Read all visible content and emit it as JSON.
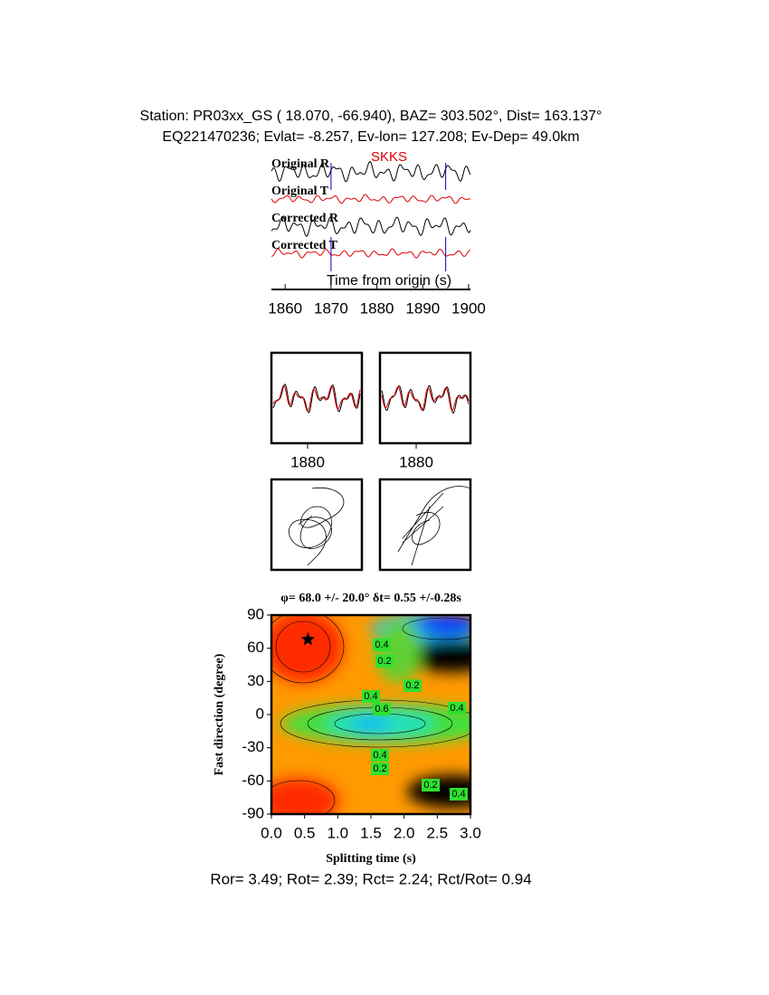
{
  "header": {
    "line1": "Station: PR03xx_GS (  18.070,  -66.940), BAZ=  303.502°, Dist=  163.137°",
    "line2": "EQ221470236; Evlat=  -8.257, Ev-lon= 127.208; Ev-Dep= 49.0km"
  },
  "chart_data": [
    {
      "type": "waveforms",
      "phase": "SKKS",
      "traces": [
        "Original R",
        "Original T",
        "Corrected R",
        "Corrected T"
      ],
      "xlabel": "Time from origin (s)",
      "xlim": [
        1857,
        1900.4
      ],
      "xticks": [
        1860,
        1870,
        1880,
        1890,
        1900
      ],
      "window": [
        1870,
        1895
      ]
    },
    {
      "type": "window",
      "xlim": [
        1870,
        1895
      ],
      "xticks": [
        1880
      ]
    },
    {
      "type": "window",
      "xlim": [
        1870,
        1895
      ],
      "xticks": [
        1880
      ]
    },
    {
      "type": "contour",
      "title": "φ= 68.0 +/- 20.0° δt= 0.55 +/-0.28s",
      "xlabel": "Splitting time (s)",
      "ylabel": "Fast direction (degree)",
      "xlim": [
        0,
        3
      ],
      "ylim": [
        -90,
        90
      ],
      "xticks": [
        {
          "value": 0,
          "label": "0.0"
        },
        {
          "value": 0.5,
          "label": "0.5"
        },
        {
          "value": 1,
          "label": "1.0"
        },
        {
          "value": 1.5,
          "label": "1.5"
        },
        {
          "value": 2,
          "label": "2.0"
        },
        {
          "value": 2.5,
          "label": "2.5"
        },
        {
          "value": 3,
          "label": "3.0"
        }
      ],
      "yticks": [
        -90,
        -60,
        -30,
        0,
        30,
        60,
        90
      ],
      "best": {
        "x": 0.55,
        "y": 68
      },
      "contour_labels": [
        "0.2",
        "0.4",
        "0.2",
        "0.4",
        "0.6",
        "0.4",
        "0.4",
        "0.2",
        "0.2",
        "0.4"
      ]
    }
  ],
  "footer": "Ror= 3.49; Rot= 2.39; Rct= 2.24; Rct/Rot= 0.94"
}
